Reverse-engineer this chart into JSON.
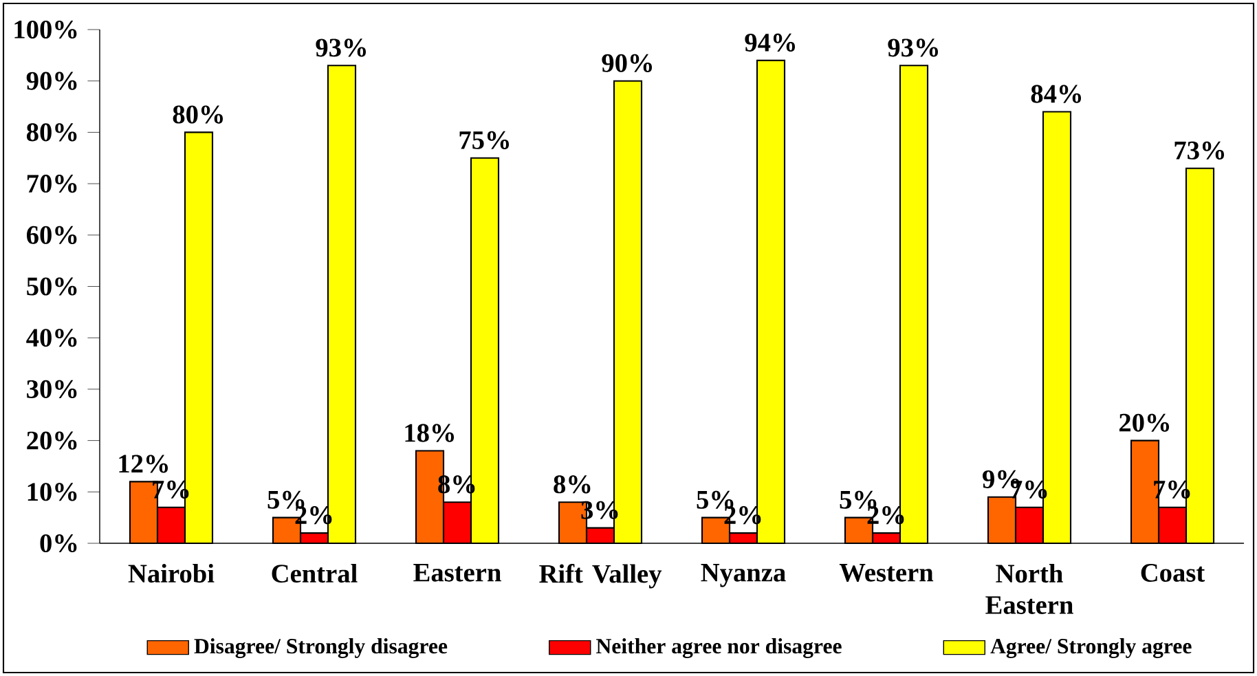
{
  "chart_data": {
    "type": "bar",
    "categories": [
      "Nairobi",
      "Central",
      "Eastern",
      "Rift Valley",
      "Nyanza",
      "Western",
      "North Eastern",
      "Coast"
    ],
    "series": [
      {
        "name": "Disagree/ Strongly disagree",
        "color": "#ff6600",
        "values": [
          12,
          5,
          18,
          8,
          5,
          5,
          9,
          20
        ],
        "value_labels": [
          "12%",
          "5%",
          "18%",
          "8%",
          "5%",
          "5%",
          "9%",
          "20%"
        ]
      },
      {
        "name": "Neither agree nor disagree",
        "color": "#ff0000",
        "values": [
          7,
          2,
          8,
          3,
          2,
          2,
          7,
          7
        ],
        "value_labels": [
          "7%",
          "2%",
          "8%",
          "3%",
          "2%",
          "2%",
          "7%",
          "7%"
        ]
      },
      {
        "name": "Agree/ Strongly agree",
        "color": "#ffff00",
        "values": [
          80,
          93,
          75,
          90,
          94,
          93,
          84,
          73
        ],
        "value_labels": [
          "80%",
          "93%",
          "75%",
          "90%",
          "94%",
          "93%",
          "84%",
          "73%"
        ]
      }
    ],
    "ylim": [
      0,
      100
    ],
    "yticks": [
      {
        "value": 0,
        "label": "0%"
      },
      {
        "value": 10,
        "label": "10%"
      },
      {
        "value": 20,
        "label": "20%"
      },
      {
        "value": 30,
        "label": "30%"
      },
      {
        "value": 40,
        "label": "40%"
      },
      {
        "value": 50,
        "label": "50%"
      },
      {
        "value": 60,
        "label": "60%"
      },
      {
        "value": 70,
        "label": "70%"
      },
      {
        "value": 80,
        "label": "80%"
      },
      {
        "value": 90,
        "label": "90%"
      },
      {
        "value": 100,
        "label": "100%"
      }
    ],
    "legend": "bottom",
    "grid": false
  }
}
